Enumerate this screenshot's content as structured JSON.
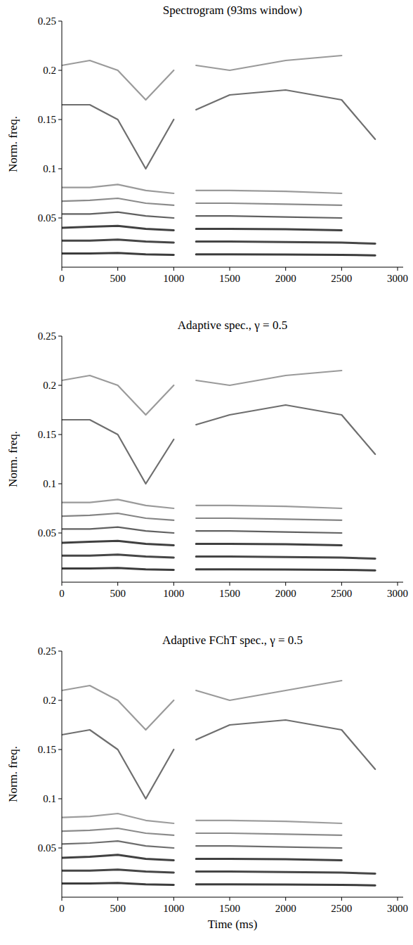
{
  "chart_data": [
    {
      "type": "line",
      "title": "Spectrogram (93ms window)",
      "y_label": "Norm. freq.",
      "x": [
        0,
        250,
        500,
        750,
        1000,
        1100,
        1200,
        1500,
        2000,
        2500,
        2800
      ],
      "xlim": [
        0,
        3050
      ],
      "xticks": [
        0,
        500,
        1000,
        1500,
        2000,
        2500,
        3000
      ],
      "ylim": [
        0,
        0.25
      ],
      "yticks": [
        0.05,
        0.1,
        0.15,
        0.2,
        0.25
      ],
      "grid": false,
      "tick_labels": true,
      "series": [
        {
          "color": "#1a1a1a",
          "values": [
            0.014,
            0.014,
            0.0145,
            0.013,
            0.0125,
            null,
            0.013,
            0.013,
            0.0128,
            0.0125,
            0.012
          ]
        },
        {
          "color": "#262626",
          "values": [
            0.027,
            0.027,
            0.028,
            0.026,
            0.025,
            null,
            0.026,
            0.026,
            0.0256,
            0.025,
            0.024
          ]
        },
        {
          "color": "#202020",
          "values": [
            0.04,
            0.041,
            0.042,
            0.039,
            0.0375,
            null,
            0.039,
            0.039,
            0.0385,
            0.0375,
            null
          ]
        },
        {
          "color": "#444444",
          "values": [
            0.054,
            0.054,
            0.056,
            0.052,
            0.05,
            null,
            0.052,
            0.052,
            0.051,
            0.05,
            null
          ]
        },
        {
          "color": "#777777",
          "values": [
            0.067,
            0.068,
            0.07,
            0.065,
            0.063,
            null,
            0.065,
            0.065,
            0.064,
            0.063,
            null
          ]
        },
        {
          "color": "#888888",
          "values": [
            0.081,
            0.081,
            0.084,
            0.078,
            0.075,
            null,
            0.078,
            0.078,
            0.077,
            0.075,
            null
          ]
        },
        {
          "color": "#555555",
          "values": [
            0.165,
            0.165,
            0.15,
            0.1,
            0.15,
            null,
            0.16,
            0.175,
            0.18,
            0.17,
            0.13
          ]
        },
        {
          "color": "#888888",
          "values": [
            0.205,
            0.21,
            0.2,
            0.17,
            0.2,
            null,
            0.205,
            0.2,
            0.21,
            0.215,
            null
          ]
        }
      ]
    },
    {
      "type": "line",
      "title": "Adaptive spec., γ = 0.5",
      "y_label": "Norm. freq.",
      "x": [
        0,
        250,
        500,
        750,
        1000,
        1100,
        1200,
        1500,
        2000,
        2500,
        2800
      ],
      "xlim": [
        0,
        3050
      ],
      "xticks": [
        0,
        500,
        1000,
        1500,
        2000,
        2500,
        3000
      ],
      "ylim": [
        0,
        0.25
      ],
      "yticks": [
        0.05,
        0.1,
        0.15,
        0.2,
        0.25
      ],
      "grid": false,
      "tick_labels": true,
      "series": [
        {
          "color": "#1a1a1a",
          "values": [
            0.014,
            0.014,
            0.0145,
            0.013,
            0.0125,
            null,
            0.013,
            0.013,
            0.0128,
            0.0125,
            0.012
          ]
        },
        {
          "color": "#262626",
          "values": [
            0.027,
            0.027,
            0.028,
            0.026,
            0.025,
            null,
            0.026,
            0.026,
            0.0256,
            0.025,
            0.024
          ]
        },
        {
          "color": "#1e1e1e",
          "values": [
            0.04,
            0.041,
            0.042,
            0.039,
            0.0375,
            null,
            0.039,
            0.039,
            0.0385,
            0.0375,
            null
          ]
        },
        {
          "color": "#444444",
          "values": [
            0.054,
            0.054,
            0.056,
            0.052,
            0.05,
            null,
            0.052,
            0.052,
            0.051,
            0.05,
            null
          ]
        },
        {
          "color": "#6e6e6e",
          "values": [
            0.067,
            0.068,
            0.07,
            0.065,
            0.063,
            null,
            0.065,
            0.065,
            0.064,
            0.063,
            null
          ]
        },
        {
          "color": "#888888",
          "values": [
            0.081,
            0.081,
            0.084,
            0.078,
            0.075,
            null,
            0.078,
            0.078,
            0.077,
            0.075,
            null
          ]
        },
        {
          "color": "#555555",
          "values": [
            0.165,
            0.165,
            0.15,
            0.1,
            0.145,
            null,
            0.16,
            0.17,
            0.18,
            0.17,
            0.13
          ]
        },
        {
          "color": "#888888",
          "values": [
            0.205,
            0.21,
            0.2,
            0.17,
            0.2,
            null,
            0.205,
            0.2,
            0.21,
            0.215,
            null
          ]
        }
      ]
    },
    {
      "type": "line",
      "title": "Adaptive FChT spec., γ = 0.5",
      "y_label": "Norm. freq.",
      "x_label": "Time (ms)",
      "x": [
        0,
        250,
        500,
        750,
        1000,
        1100,
        1200,
        1500,
        2000,
        2500,
        2800
      ],
      "xlim": [
        0,
        3050
      ],
      "xticks": [
        0,
        500,
        1000,
        1500,
        2000,
        2500,
        3000
      ],
      "ylim": [
        0,
        0.25
      ],
      "yticks": [
        0.05,
        0.1,
        0.15,
        0.2,
        0.25
      ],
      "grid": false,
      "tick_labels": true,
      "series": [
        {
          "color": "#1a1a1a",
          "values": [
            0.014,
            0.014,
            0.0145,
            0.013,
            0.0125,
            null,
            0.013,
            0.013,
            0.0128,
            0.0125,
            0.012
          ]
        },
        {
          "color": "#262626",
          "values": [
            0.027,
            0.027,
            0.028,
            0.026,
            0.025,
            null,
            0.026,
            0.026,
            0.0256,
            0.025,
            0.024
          ]
        },
        {
          "color": "#202020",
          "values": [
            0.04,
            0.041,
            0.043,
            0.039,
            0.0375,
            null,
            0.039,
            0.039,
            0.0385,
            0.0375,
            null
          ]
        },
        {
          "color": "#555555",
          "values": [
            0.054,
            0.055,
            0.057,
            0.052,
            0.05,
            null,
            0.052,
            0.052,
            0.051,
            0.05,
            null
          ]
        },
        {
          "color": "#777777",
          "values": [
            0.067,
            0.068,
            0.07,
            0.065,
            0.063,
            null,
            0.065,
            0.065,
            0.064,
            0.063,
            null
          ]
        },
        {
          "color": "#8c8c8c",
          "values": [
            0.081,
            0.082,
            0.085,
            0.078,
            0.075,
            null,
            0.078,
            0.078,
            0.077,
            0.075,
            null
          ]
        },
        {
          "color": "#555555",
          "values": [
            0.165,
            0.17,
            0.15,
            0.1,
            0.15,
            null,
            0.16,
            0.175,
            0.18,
            0.17,
            0.13
          ]
        },
        {
          "color": "#888888",
          "values": [
            0.21,
            0.215,
            0.2,
            0.17,
            0.2,
            null,
            0.21,
            0.2,
            0.21,
            0.22,
            null
          ]
        }
      ]
    }
  ]
}
